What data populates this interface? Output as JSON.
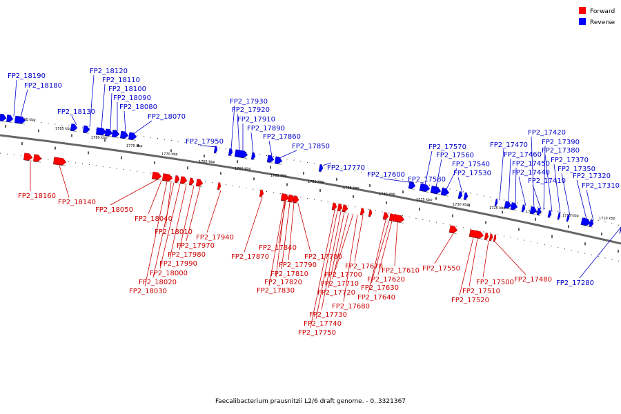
{
  "legend": {
    "forward_label": "Forward",
    "reverse_label": "Reverse",
    "forward_color": "#ff0000",
    "reverse_color": "#0000ff"
  },
  "caption": "Faecalibacterium prausnitzii L2/6 draft genome. - 0..3321367",
  "kbp_ticks": [
    "1790 kbp",
    "1785 kbp",
    "1780 kbp",
    "1775 kbp",
    "1770 kbp",
    "1765 kbp",
    "1760 kbp",
    "1755 kbp",
    "1750 kbp",
    "1745 kbp",
    "1740 kbp",
    "1735 kbp",
    "1730 kbp",
    "1725 kbp",
    "1720 kbp",
    "1715 kbp",
    "1710 kbp"
  ],
  "reverse_genes": [
    "FP2_18190",
    "FP2_18180",
    "FP2_18130",
    "FP2_18120",
    "FP2_18110",
    "FP2_18100",
    "FP2_18090",
    "FP2_18080",
    "FP2_18070",
    "FP2_17950",
    "FP2_17930",
    "FP2_17920",
    "FP2_17910",
    "FP2_17890",
    "FP2_17860",
    "FP2_17850",
    "FP2_17770",
    "FP2_17600",
    "FP2_17580",
    "FP2_17570",
    "FP2_17560",
    "FP2_17540",
    "FP2_17530",
    "FP2_17470",
    "FP2_17460",
    "FP2_17450",
    "FP2_17440",
    "FP2_17420",
    "FP2_17410",
    "FP2_17390",
    "FP2_17380",
    "FP2_17370",
    "FP2_17350",
    "FP2_17320",
    "FP2_17310",
    "FP2_17280"
  ],
  "forward_genes": [
    "FP2_18160",
    "FP2_18140",
    "FP2_18050",
    "FP2_18040",
    "FP2_18010",
    "FP2_17940",
    "FP2_17970",
    "FP2_17980",
    "FP2_17990",
    "FP2_18000",
    "FP2_18020",
    "FP2_18030",
    "FP2_17870",
    "FP2_17840",
    "FP2_17780",
    "FP2_17790",
    "FP2_17810",
    "FP2_17820",
    "FP2_17830",
    "FP2_17670",
    "FP2_17700",
    "FP2_17710",
    "FP2_17720",
    "FP2_17730",
    "FP2_17740",
    "FP2_17750",
    "FP2_17680",
    "FP2_17640",
    "FP2_17630",
    "FP2_17620",
    "FP2_17610",
    "FP2_17550",
    "FP2_17500",
    "FP2_17510",
    "FP2_17520",
    "FP2_17480"
  ]
}
